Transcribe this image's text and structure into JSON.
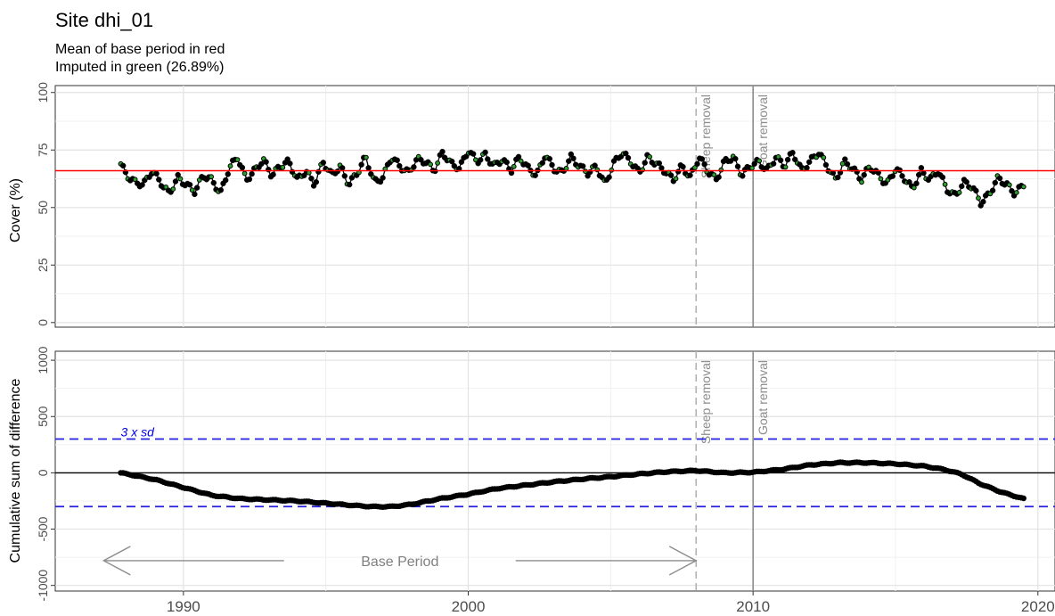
{
  "chart_data": {
    "type": "scatter",
    "title": "Site dhi_01",
    "subtitle_lines": [
      "Mean of base period in red",
      "Imputed in green (26.89%)"
    ],
    "x_ticks": [
      "1990",
      "2000",
      "2010",
      "2020"
    ],
    "xlim": [
      1985.5,
      2020.6
    ],
    "panels": [
      {
        "name": "cover",
        "ylabel": "Cover (%)",
        "ylim": [
          -2,
          103
        ],
        "y_ticks": [
          "0",
          "25",
          "50",
          "75",
          "100"
        ],
        "mean_line": 66,
        "mean_color": "#ff0000",
        "observed_color": "#000000",
        "imputed_color": "#2ca02c",
        "series_control_points": {
          "x": [
            1987.8,
            1988.0,
            1988.3,
            1988.6,
            1988.9,
            1989.2,
            1989.5,
            1989.8,
            1990.1,
            1990.4,
            1990.7,
            1991.0,
            1991.3,
            1991.6,
            1991.9,
            1992.2,
            1992.5,
            1992.8,
            1993.1,
            1993.4,
            1993.7,
            1994.0,
            1994.3,
            1994.6,
            1994.9,
            1995.2,
            1995.5,
            1995.8,
            1996.1,
            1996.4,
            1996.7,
            1997.0,
            1997.3,
            1997.6,
            1997.9,
            1998.2,
            1998.5,
            1998.8,
            1999.1,
            1999.4,
            1999.7,
            2000.0,
            2000.3,
            2000.6,
            2000.9,
            2001.2,
            2001.5,
            2001.8,
            2002.1,
            2002.4,
            2002.7,
            2003.0,
            2003.3,
            2003.6,
            2003.9,
            2004.2,
            2004.5,
            2004.8,
            2005.1,
            2005.4,
            2005.7,
            2006.0,
            2006.3,
            2006.6,
            2006.9,
            2007.2,
            2007.5,
            2007.8,
            2008.1,
            2008.4,
            2008.7,
            2009.0,
            2009.3,
            2009.6,
            2009.9,
            2010.2,
            2010.5,
            2010.8,
            2011.1,
            2011.4,
            2011.7,
            2012.0,
            2012.3,
            2012.6,
            2012.9,
            2013.2,
            2013.5,
            2013.8,
            2014.1,
            2014.4,
            2014.7,
            2015.0,
            2015.3,
            2015.6,
            2015.9,
            2016.2,
            2016.5,
            2016.8,
            2017.1,
            2017.4,
            2017.7,
            2018.0,
            2018.3,
            2018.6,
            2018.9,
            2019.2,
            2019.5
          ],
          "y": [
            69,
            64,
            61,
            60,
            66,
            61,
            56,
            63,
            60,
            57,
            64,
            62,
            56,
            67,
            72,
            62,
            66,
            71,
            64,
            68,
            70,
            62,
            66,
            60,
            70,
            64,
            68,
            60,
            65,
            72,
            61,
            63,
            72,
            68,
            65,
            71,
            70,
            66,
            74,
            69,
            67,
            75,
            70,
            73,
            68,
            71,
            66,
            72,
            67,
            64,
            73,
            67,
            65,
            72,
            68,
            65,
            68,
            60,
            69,
            74,
            70,
            65,
            72,
            69,
            66,
            62,
            68,
            63,
            72,
            66,
            62,
            70,
            72,
            64,
            68,
            70,
            66,
            72,
            68,
            74,
            66,
            70,
            74,
            68,
            62,
            70,
            67,
            62,
            68,
            64,
            60,
            67,
            63,
            58,
            66,
            62,
            66,
            58,
            55,
            61,
            59,
            52,
            56,
            63,
            60,
            56,
            60
          ]
        }
      },
      {
        "name": "cusum",
        "ylabel": "Cumulative sum of difference",
        "ylim": [
          -1050,
          1080
        ],
        "y_ticks": [
          "-1000",
          "-500",
          "0",
          "500",
          "1000"
        ],
        "threshold": 300,
        "threshold_label": "3 x sd",
        "threshold_color": "#2222dd",
        "zero_line": 0,
        "series_control_points": {
          "x": [
            1987.8,
            1989.0,
            1990.0,
            1991.0,
            1992.0,
            1993.0,
            1994.0,
            1995.0,
            1996.0,
            1996.6,
            1997.3,
            1998.0,
            1999.0,
            2000.0,
            2001.0,
            2002.0,
            2003.0,
            2004.0,
            2005.0,
            2006.0,
            2007.0,
            2008.0,
            2009.0,
            2010.0,
            2011.0,
            2012.0,
            2013.0,
            2014.0,
            2015.0,
            2016.0,
            2016.7,
            2017.3,
            2018.0,
            2018.7,
            2019.5
          ],
          "y": [
            0,
            -60,
            -130,
            -200,
            -230,
            -240,
            -250,
            -270,
            -290,
            -300,
            -300,
            -280,
            -230,
            -190,
            -140,
            -110,
            -80,
            -55,
            -35,
            -10,
            10,
            20,
            0,
            5,
            30,
            70,
            90,
            90,
            80,
            60,
            30,
            -10,
            -100,
            -170,
            -230
          ]
        }
      }
    ],
    "events": [
      {
        "label": "Sheep removal",
        "x": 2008.0,
        "style": "dashed",
        "color": "#b3b3b3"
      },
      {
        "label": "Goat removal",
        "x": 2010.0,
        "style": "solid",
        "color": "#8c8c8c"
      }
    ],
    "base_period": {
      "label": "Base Period",
      "start": 1987.2,
      "end": 2008.0,
      "y": -780,
      "color": "#8c8c8c"
    }
  }
}
